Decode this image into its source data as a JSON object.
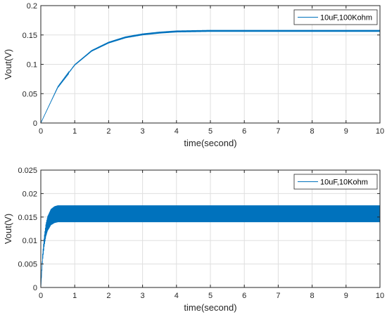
{
  "chart_data": [
    {
      "type": "line",
      "xlabel": "time(second)",
      "ylabel": "Vout(V)",
      "xlim": [
        0,
        10
      ],
      "ylim": [
        0,
        0.2
      ],
      "xticks": [
        "0",
        "1",
        "2",
        "3",
        "4",
        "5",
        "6",
        "7",
        "8",
        "9",
        "10"
      ],
      "yticks": [
        "0",
        "0.05",
        "0.1",
        "0.15",
        "0.2"
      ],
      "grid": true,
      "legend_position": "top-right",
      "color": "#0072BD",
      "series": [
        {
          "name": "10uF,100Kohm",
          "x": [
            0,
            0.5,
            1,
            1.5,
            2,
            2.5,
            3,
            3.5,
            4,
            5,
            6,
            7,
            8,
            9,
            10
          ],
          "y": [
            0,
            0.061,
            0.099,
            0.123,
            0.137,
            0.146,
            0.151,
            0.154,
            0.156,
            0.157,
            0.157,
            0.157,
            0.157,
            0.157,
            0.157
          ],
          "ripple_amplitude": 0.0015
        }
      ]
    },
    {
      "type": "line",
      "xlabel": "time(second)",
      "ylabel": "Vout(V)",
      "xlim": [
        0,
        10
      ],
      "ylim": [
        0,
        0.025
      ],
      "xticks": [
        "0",
        "1",
        "2",
        "3",
        "4",
        "5",
        "6",
        "7",
        "8",
        "9",
        "10"
      ],
      "yticks": [
        "0",
        "0.005",
        "0.01",
        "0.015",
        "0.02",
        "0.025"
      ],
      "grid": true,
      "legend_position": "top-right",
      "color": "#0072BD",
      "series": [
        {
          "name": "10uF,10Kohm",
          "x": [
            0,
            0.05,
            0.1,
            0.15,
            0.2,
            0.3,
            0.4,
            0.5,
            1,
            10
          ],
          "y": [
            0,
            0.0062,
            0.0098,
            0.0122,
            0.0136,
            0.015,
            0.0155,
            0.0157,
            0.0157,
            0.0157
          ],
          "ripple_amplitude": 0.0018
        }
      ]
    }
  ]
}
